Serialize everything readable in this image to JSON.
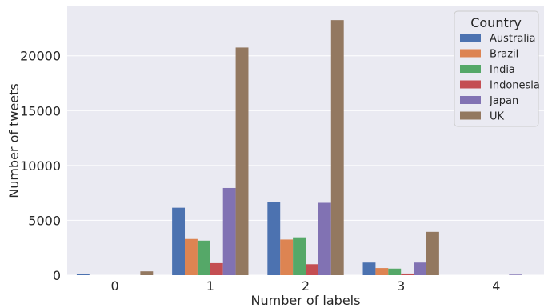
{
  "chart_data": {
    "type": "bar",
    "xlabel": "Number of labels",
    "ylabel": "Number of tweets",
    "categories": [
      "0",
      "1",
      "2",
      "3",
      "4"
    ],
    "ylim": [
      0,
      24500
    ],
    "yticks": [
      0,
      5000,
      10000,
      15000,
      20000
    ],
    "grid": true,
    "legend": {
      "title": "Country",
      "placement": "top-right"
    },
    "series": [
      {
        "name": "Australia",
        "color": "#4c72b0",
        "values": [
          100,
          6150,
          6700,
          1150,
          0
        ]
      },
      {
        "name": "Brazil",
        "color": "#dd8452",
        "values": [
          0,
          3300,
          3250,
          650,
          0
        ]
      },
      {
        "name": "India",
        "color": "#55a868",
        "values": [
          0,
          3150,
          3450,
          600,
          0
        ]
      },
      {
        "name": "Indonesia",
        "color": "#c44e52",
        "values": [
          0,
          1100,
          1000,
          150,
          0
        ]
      },
      {
        "name": "Japan",
        "color": "#8172b3",
        "values": [
          0,
          7950,
          6600,
          1150,
          50
        ]
      },
      {
        "name": "UK",
        "color": "#937860",
        "values": [
          350,
          20750,
          23250,
          3950,
          0
        ]
      }
    ]
  }
}
